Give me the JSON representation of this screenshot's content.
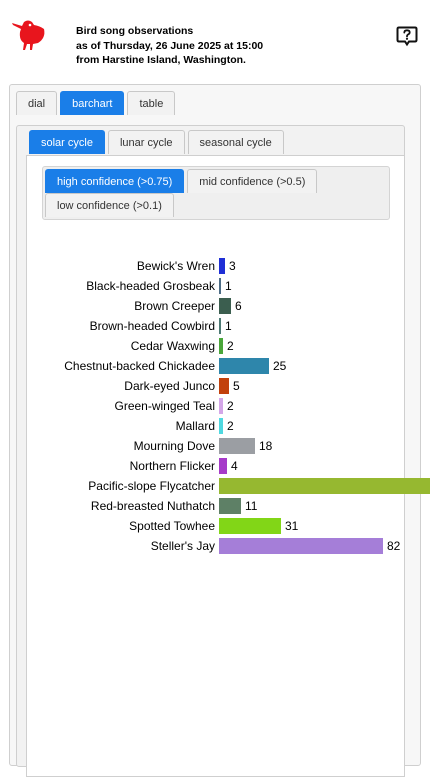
{
  "header": {
    "line1": "Bird song observations",
    "line2": "as of Thursday, 26 June 2025 at 15:00",
    "line3": "from Harstine Island, Washington.",
    "logo_icon": "red-bird-icon",
    "help_icon": "help-speech-icon",
    "logo_color": "#e8151d"
  },
  "view_tabs": [
    {
      "label": "dial",
      "active": false
    },
    {
      "label": "barchart",
      "active": true
    },
    {
      "label": "table",
      "active": false
    }
  ],
  "cycle_tabs": [
    {
      "label": "solar cycle",
      "active": true
    },
    {
      "label": "lunar cycle",
      "active": false
    },
    {
      "label": "seasonal cycle",
      "active": false
    }
  ],
  "confidence_tabs": [
    {
      "label": "high confidence (>0.75)",
      "active": true
    },
    {
      "label": "mid confidence (>0.5)",
      "active": false
    },
    {
      "label": "low confidence (>0.1)",
      "active": false
    }
  ],
  "colors": {
    "accent": "#1a7ee8"
  },
  "chart_data": {
    "type": "bar",
    "orientation": "horizontal",
    "categories": [
      "Bewick's Wren",
      "Black-headed Grosbeak",
      "Brown Creeper",
      "Brown-headed Cowbird",
      "Cedar Waxwing",
      "Chestnut-backed Chickadee",
      "Dark-eyed Junco",
      "Green-winged Teal",
      "Mallard",
      "Mourning Dove",
      "Northern Flicker",
      "Pacific-slope Flycatcher",
      "Red-breasted Nuthatch",
      "Spotted Towhee",
      "Steller's Jay"
    ],
    "values": [
      3,
      1,
      6,
      1,
      2,
      25,
      5,
      2,
      2,
      18,
      4,
      null,
      11,
      31,
      82
    ],
    "value_labels": [
      "3",
      "1",
      "6",
      "1",
      "2",
      "25",
      "5",
      "2",
      "2",
      "18",
      "4",
      "",
      "11",
      "31",
      "82"
    ],
    "colors": [
      "#1f2fd6",
      "#4d6d86",
      "#3b5e4f",
      "#4d7a74",
      "#4aa63a",
      "#2e86ab",
      "#c2410c",
      "#d4a6e8",
      "#4fd8e0",
      "#9b9ea3",
      "#a63ac9",
      "#96b830",
      "#5e8066",
      "#82d617",
      "#a57ed8"
    ],
    "title": "",
    "xlabel": "",
    "ylabel": "",
    "legend": "none"
  }
}
